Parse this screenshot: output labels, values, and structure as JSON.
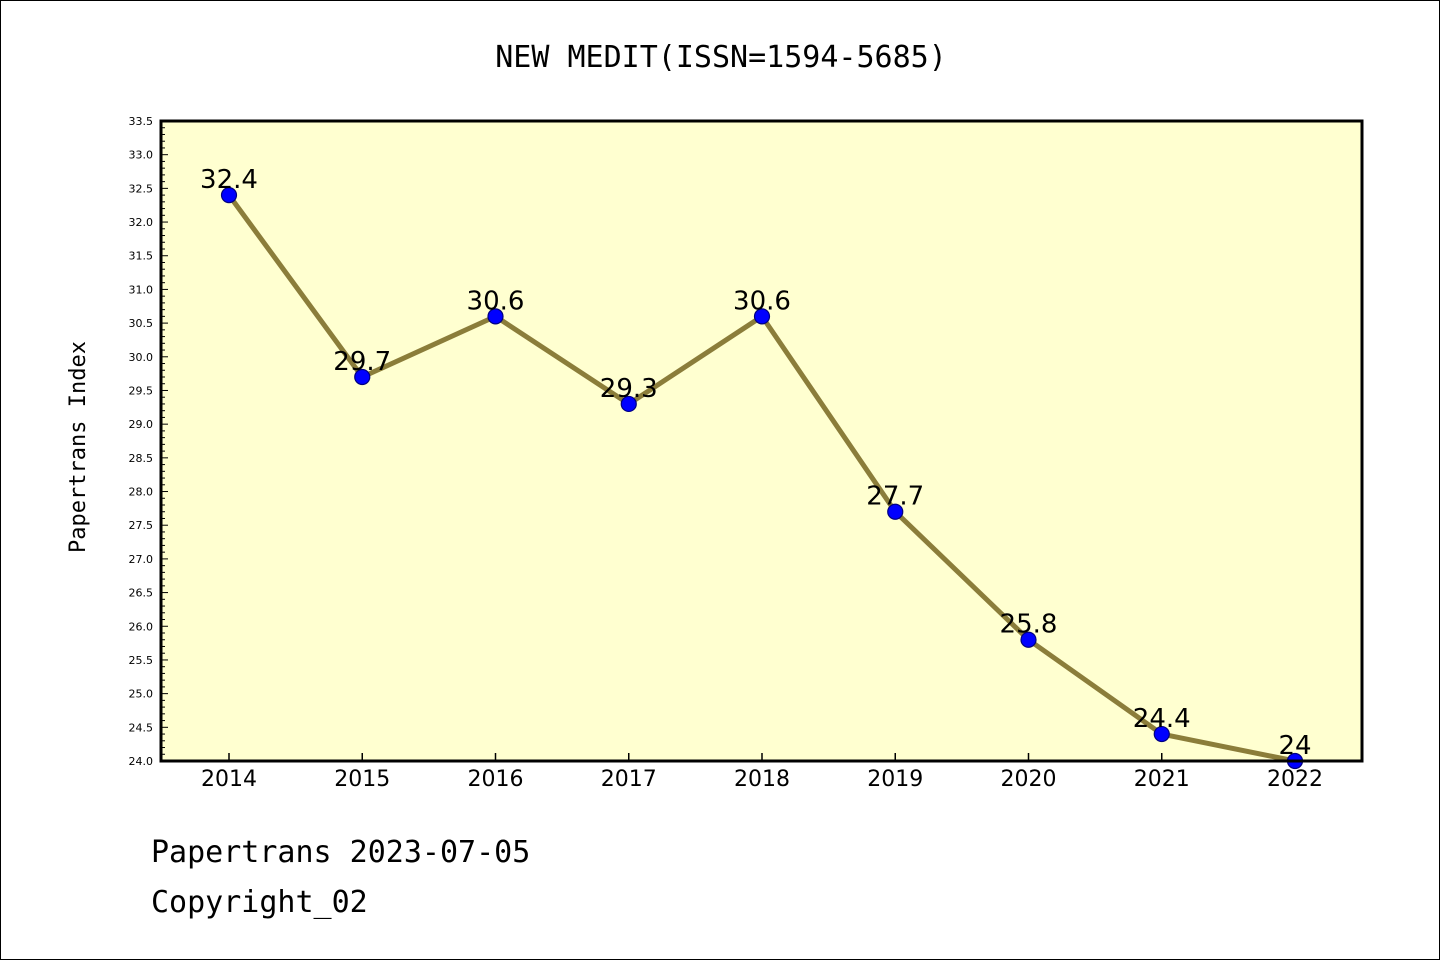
{
  "chart_data": {
    "type": "line",
    "title": "NEW MEDIT(ISSN=1594-5685)",
    "xlabel": "",
    "ylabel": "Papertrans Index",
    "categories": [
      "2014",
      "2015",
      "2016",
      "2017",
      "2018",
      "2019",
      "2020",
      "2021",
      "2022"
    ],
    "values": [
      32.4,
      29.7,
      30.6,
      29.3,
      30.6,
      27.7,
      25.8,
      24.4,
      24.0
    ],
    "data_labels": [
      "32.4",
      "29.7",
      "30.6",
      "29.3",
      "30.6",
      "27.7",
      "25.8",
      "24.4",
      "24"
    ],
    "ylim": [
      24.0,
      33.5
    ],
    "yticks": [
      "24.0",
      "24.5",
      "25.0",
      "25.5",
      "26.0",
      "26.5",
      "27.0",
      "27.5",
      "28.0",
      "28.5",
      "29.0",
      "29.5",
      "30.0",
      "30.5",
      "31.0",
      "31.5",
      "32.0",
      "32.5",
      "33.0",
      "33.5"
    ],
    "grid": false,
    "colors": {
      "plot_background": "#ffffd0",
      "line": "#8b7d3a",
      "marker": "#0000ff",
      "marker_edge": "#000080"
    }
  },
  "footer": {
    "date_line": "Papertrans 2023-07-05",
    "copyright": "Copyright_02"
  }
}
